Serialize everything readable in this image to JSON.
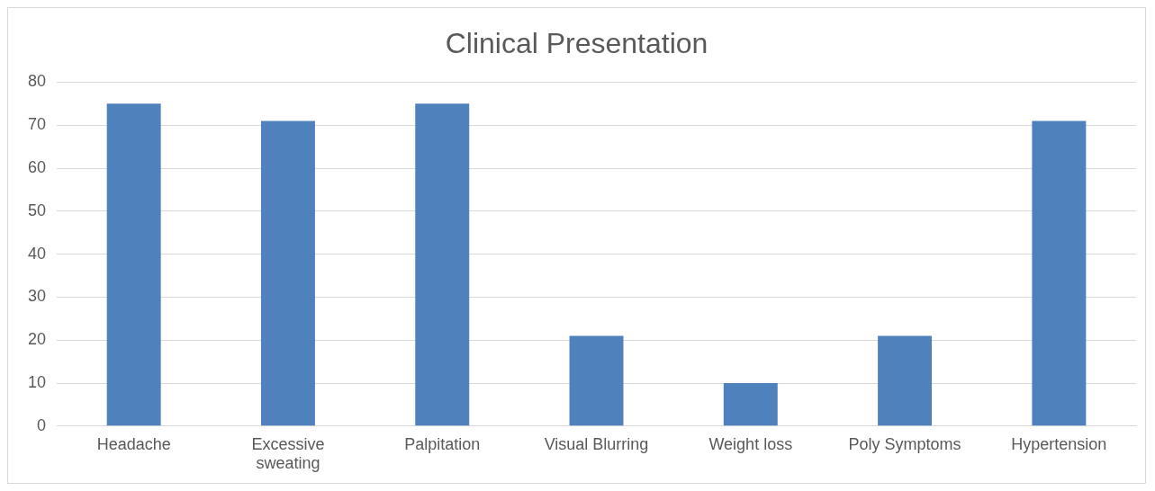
{
  "chart_data": {
    "type": "bar",
    "title": "Clinical Presentation",
    "categories": [
      "Headache",
      "Excessive sweating",
      "Palpitation",
      "Visual Blurring",
      "Weight loss",
      "Poly Symptoms",
      "Hypertension"
    ],
    "values": [
      75,
      71,
      75,
      21,
      10,
      21,
      71
    ],
    "color": "#4f81bd",
    "ylim": [
      0,
      80
    ],
    "yticks": [
      0,
      10,
      20,
      30,
      40,
      50,
      60,
      70,
      80
    ],
    "grid": "y"
  }
}
